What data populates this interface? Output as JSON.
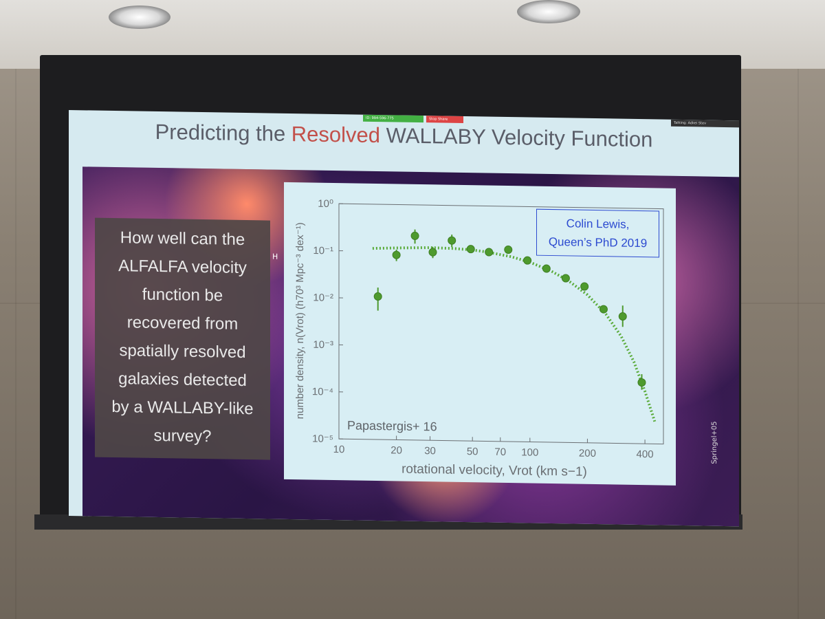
{
  "room_toolbar": {
    "meeting_id": "ID: 994-596-775",
    "stop_share": "Stop Share",
    "talking": "Talking: Adkei Stev"
  },
  "slide": {
    "title_pre": "Predicting the ",
    "title_highlight": "Resolved",
    "title_post": " WALLABY Velocity Function",
    "highlight_color": "#c2504a",
    "question_lines": [
      "How well can the",
      "ALFALFA velocity",
      "function be",
      "recovered from",
      "spatially resolved",
      "galaxies detected",
      "by a WALLABY-like",
      "survey?"
    ],
    "stray_letter": "H",
    "legend_line1": "Colin Lewis,",
    "legend_line2": "Queen’s PhD 2019",
    "image_credit": "Springel+05"
  },
  "chart_data": {
    "type": "scatter",
    "xlabel": "rotational velocity, Vrot   (km s−1)",
    "ylabel": "number density, n(Vrot)   (h70³ Mpc⁻³ dex⁻¹)",
    "xscale": "log",
    "yscale": "log",
    "xlim": [
      10,
      500
    ],
    "ylim": [
      1e-05,
      1
    ],
    "x_ticks": [
      "10",
      "20",
      "30",
      "50",
      "70",
      "100",
      "200",
      "400"
    ],
    "y_ticks": [
      "10⁰",
      "10⁻¹",
      "10⁻²",
      "10⁻³",
      "10⁻⁴",
      "10⁻⁵"
    ],
    "annotation": "Papastergis+ 16",
    "series": [
      {
        "kind": "points_with_errorbars",
        "color": "#4e9a2e",
        "x": [
          16,
          20,
          25,
          31,
          39,
          49,
          61,
          77,
          97,
          122,
          154,
          193,
          243,
          306,
          385
        ],
        "y": [
          0.011,
          0.085,
          0.22,
          0.1,
          0.18,
          0.12,
          0.105,
          0.12,
          0.072,
          0.049,
          0.031,
          0.021,
          0.007,
          0.005,
          0.0002
        ],
        "err_lo": [
          0.0055,
          0.063,
          0.15,
          0.075,
          0.13,
          0.1,
          0.097,
          0.1,
          0.066,
          0.046,
          0.029,
          0.019,
          0.006,
          0.003,
          0.00014
        ],
        "err_hi": [
          0.017,
          0.11,
          0.3,
          0.13,
          0.24,
          0.145,
          0.113,
          0.145,
          0.078,
          0.052,
          0.033,
          0.023,
          0.008,
          0.0085,
          0.0003
        ]
      },
      {
        "kind": "fit_curve",
        "color": "#5aab3a",
        "x": [
          15,
          20,
          30,
          40,
          50,
          60,
          80,
          100,
          130,
          160,
          200,
          250,
          300,
          350,
          400,
          450
        ],
        "y": [
          0.115,
          0.12,
          0.125,
          0.122,
          0.115,
          0.105,
          0.085,
          0.066,
          0.043,
          0.027,
          0.014,
          0.0055,
          0.0019,
          0.00055,
          0.00013,
          3e-05
        ]
      }
    ]
  }
}
